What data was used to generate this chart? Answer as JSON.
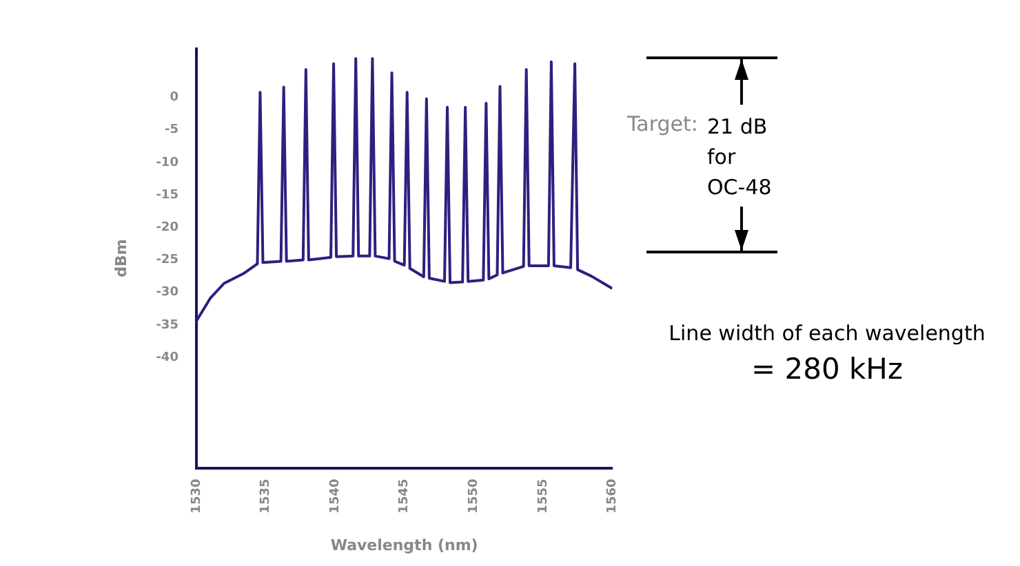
{
  "chart_data": {
    "type": "line",
    "xlabel": "Wavelength (nm)",
    "ylabel": "dBm",
    "x": [
      1530.0,
      1531.0,
      1532.0,
      1533.4,
      1534.4,
      1534.6,
      1534.8,
      1536.1,
      1536.3,
      1536.5,
      1537.7,
      1537.9,
      1538.1,
      1539.7,
      1539.9,
      1540.1,
      1541.3,
      1541.5,
      1541.7,
      1542.5,
      1542.7,
      1542.9,
      1543.9,
      1544.1,
      1544.3,
      1545.0,
      1545.2,
      1545.4,
      1546.4,
      1546.6,
      1546.8,
      1547.9,
      1548.1,
      1548.3,
      1549.2,
      1549.4,
      1549.6,
      1550.7,
      1550.9,
      1551.1,
      1551.7,
      1551.9,
      1552.1,
      1553.6,
      1553.8,
      1554.0,
      1555.4,
      1555.6,
      1555.8,
      1557.0,
      1557.3,
      1557.5,
      1558.5,
      1560.0
    ],
    "series": [
      {
        "color": "#2b2180",
        "values": [
          -34.4,
          -30.9,
          -28.6,
          -27.1,
          -25.6,
          0.8,
          -25.4,
          -25.2,
          1.6,
          -25.2,
          -25.0,
          4.3,
          -25.0,
          -24.6,
          5.2,
          -24.5,
          -24.4,
          6.0,
          -24.4,
          -24.4,
          6.0,
          -24.4,
          -24.8,
          3.8,
          -25.2,
          -25.8,
          0.8,
          -26.3,
          -27.6,
          -0.2,
          -27.8,
          -28.3,
          -1.5,
          -28.5,
          -28.4,
          -1.5,
          -28.3,
          -28.1,
          -0.9,
          -27.9,
          -27.3,
          1.7,
          -27.0,
          -26.0,
          4.3,
          -25.9,
          -25.9,
          5.5,
          -25.9,
          -26.2,
          5.2,
          -26.5,
          -27.5,
          -29.4
        ]
      }
    ],
    "xlim": [
      1530,
      1560
    ],
    "ylim": [
      -57,
      7.5
    ],
    "xticks": [
      1530,
      1535,
      1540,
      1545,
      1550,
      1555,
      1560
    ],
    "yticks": [
      0,
      -5,
      -10,
      -15,
      -20,
      -25,
      -30,
      -35,
      -40
    ],
    "marker": "none",
    "annotations": [
      "Target:",
      "21 dB for OC-48",
      "Line width of each wavelength",
      "= 280 kHz"
    ]
  }
}
